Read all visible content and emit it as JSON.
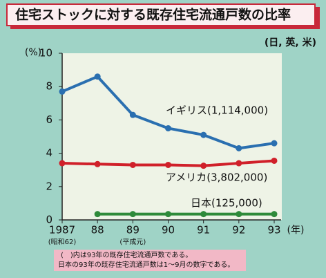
{
  "chart_data": {
    "type": "line",
    "title": "住宅ストックに対する既存住宅流通戸数の比率",
    "subtitle": "(日, 英, 米)",
    "y_label": "(%)",
    "x_label": "(年)",
    "categories": [
      "1987",
      "88",
      "89",
      "90",
      "91",
      "92",
      "93"
    ],
    "x_sublabels": [
      "(昭和62)",
      null,
      "(平成元)",
      null,
      null,
      null,
      null
    ],
    "series": [
      {
        "name": "イギリス(1,114,000)",
        "color": "#2a6fb0",
        "values": [
          7.7,
          8.6,
          6.3,
          5.5,
          5.1,
          4.3,
          4.6
        ]
      },
      {
        "name": "アメリカ(3,802,000)",
        "color": "#d0202a",
        "values": [
          3.4,
          3.35,
          3.3,
          3.3,
          3.25,
          3.4,
          3.55
        ]
      },
      {
        "name": "日本(125,000)",
        "color": "#2e8a3a",
        "values": [
          null,
          0.35,
          0.35,
          0.35,
          0.35,
          0.35,
          0.35
        ]
      }
    ],
    "ylim": [
      0,
      10
    ],
    "yticks": [
      0,
      2,
      4,
      6,
      8,
      10
    ],
    "notes": [
      "(　)内は93年の既存住宅流通戸数である。",
      "日本の93年の既存住宅流通戸数は1～9月の数字である。"
    ]
  }
}
